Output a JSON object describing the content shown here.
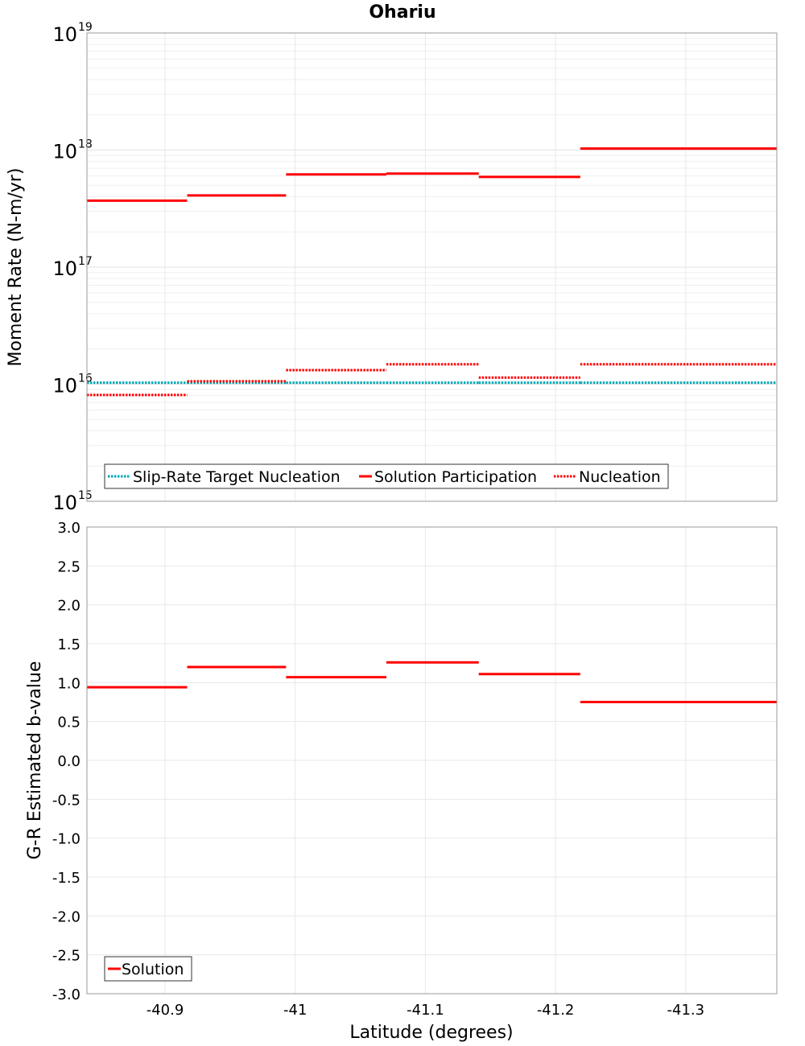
{
  "chart_data": [
    {
      "type": "line",
      "subtype": "step-segments",
      "title": "Ohariu",
      "xlabel": "",
      "ylabel": "Moment Rate (N-m/yr)",
      "xlim": [
        -40.84,
        -41.37
      ],
      "x_reversed": true,
      "yscale": "log",
      "ylim": [
        1000000000000000.0,
        1e+19
      ],
      "yticks": [
        {
          "base": "10",
          "exp": "15",
          "value": 1000000000000000.0
        },
        {
          "base": "10",
          "exp": "16",
          "value": 1e+16
        },
        {
          "base": "10",
          "exp": "17",
          "value": 1e+17
        },
        {
          "base": "10",
          "exp": "18",
          "value": 1e+18
        },
        {
          "base": "10",
          "exp": "19",
          "value": 1e+19
        }
      ],
      "grid": true,
      "legend_position": "bottom-left",
      "series": [
        {
          "name": "Slip-Rate Target Nucleation",
          "color": "#00a8b5",
          "style": "dotted",
          "segments": [
            {
              "x0": -40.84,
              "x1": -40.917,
              "y": 1.03e+16
            },
            {
              "x0": -40.917,
              "x1": -40.993,
              "y": 1.03e+16
            },
            {
              "x0": -40.993,
              "x1": -41.07,
              "y": 1.03e+16
            },
            {
              "x0": -41.07,
              "x1": -41.141,
              "y": 1.03e+16
            },
            {
              "x0": -41.141,
              "x1": -41.219,
              "y": 1.03e+16
            },
            {
              "x0": -41.219,
              "x1": -41.37,
              "y": 1.03e+16
            }
          ]
        },
        {
          "name": "Solution Participation",
          "color": "#ff0000",
          "style": "solid",
          "segments": [
            {
              "x0": -40.84,
              "x1": -40.917,
              "y": 3.7e+17
            },
            {
              "x0": -40.917,
              "x1": -40.993,
              "y": 4.1e+17
            },
            {
              "x0": -40.993,
              "x1": -41.07,
              "y": 6.2e+17
            },
            {
              "x0": -41.07,
              "x1": -41.141,
              "y": 6.3e+17
            },
            {
              "x0": -41.141,
              "x1": -41.219,
              "y": 5.9e+17
            },
            {
              "x0": -41.219,
              "x1": -41.37,
              "y": 1.03e+18
            }
          ]
        },
        {
          "name": "Nucleation",
          "color": "#ff0000",
          "style": "dotted",
          "segments": [
            {
              "x0": -40.84,
              "x1": -40.917,
              "y": 8100000000000000.0
            },
            {
              "x0": -40.917,
              "x1": -40.993,
              "y": 1.06e+16
            },
            {
              "x0": -40.993,
              "x1": -41.07,
              "y": 1.32e+16
            },
            {
              "x0": -41.07,
              "x1": -41.141,
              "y": 1.48e+16
            },
            {
              "x0": -41.141,
              "x1": -41.219,
              "y": 1.14e+16
            },
            {
              "x0": -41.219,
              "x1": -41.37,
              "y": 1.48e+16
            }
          ]
        }
      ]
    },
    {
      "type": "line",
      "subtype": "step-segments",
      "title": "",
      "xlabel": "Latitude (degrees)",
      "ylabel": "G-R Estimated b-value",
      "xlim": [
        -40.84,
        -41.37
      ],
      "x_reversed": true,
      "xticks": [
        {
          "label": "-40.9",
          "value": -40.9
        },
        {
          "label": "-41",
          "value": -41.0
        },
        {
          "label": "-41.1",
          "value": -41.1
        },
        {
          "label": "-41.2",
          "value": -41.2
        },
        {
          "label": "-41.3",
          "value": -41.3
        }
      ],
      "ylim": [
        -3.0,
        3.0
      ],
      "yticks": [
        {
          "label": "3.0",
          "value": 3.0
        },
        {
          "label": "2.5",
          "value": 2.5
        },
        {
          "label": "2.0",
          "value": 2.0
        },
        {
          "label": "1.5",
          "value": 1.5
        },
        {
          "label": "1.0",
          "value": 1.0
        },
        {
          "label": "0.5",
          "value": 0.5
        },
        {
          "label": "0.0",
          "value": 0.0
        },
        {
          "label": "-0.5",
          "value": -0.5
        },
        {
          "label": "-1.0",
          "value": -1.0
        },
        {
          "label": "-1.5",
          "value": -1.5
        },
        {
          "label": "-2.0",
          "value": -2.0
        },
        {
          "label": "-2.5",
          "value": -2.5
        },
        {
          "label": "-3.0",
          "value": -3.0
        }
      ],
      "grid": true,
      "legend_position": "bottom-left",
      "series": [
        {
          "name": "Solution",
          "color": "#ff0000",
          "style": "solid",
          "segments": [
            {
              "x0": -40.84,
              "x1": -40.917,
              "y": 0.94
            },
            {
              "x0": -40.917,
              "x1": -40.993,
              "y": 1.2
            },
            {
              "x0": -40.993,
              "x1": -41.07,
              "y": 1.07
            },
            {
              "x0": -41.07,
              "x1": -41.141,
              "y": 1.26
            },
            {
              "x0": -41.141,
              "x1": -41.219,
              "y": 1.11
            },
            {
              "x0": -41.219,
              "x1": -41.37,
              "y": 0.75
            }
          ]
        }
      ]
    }
  ]
}
